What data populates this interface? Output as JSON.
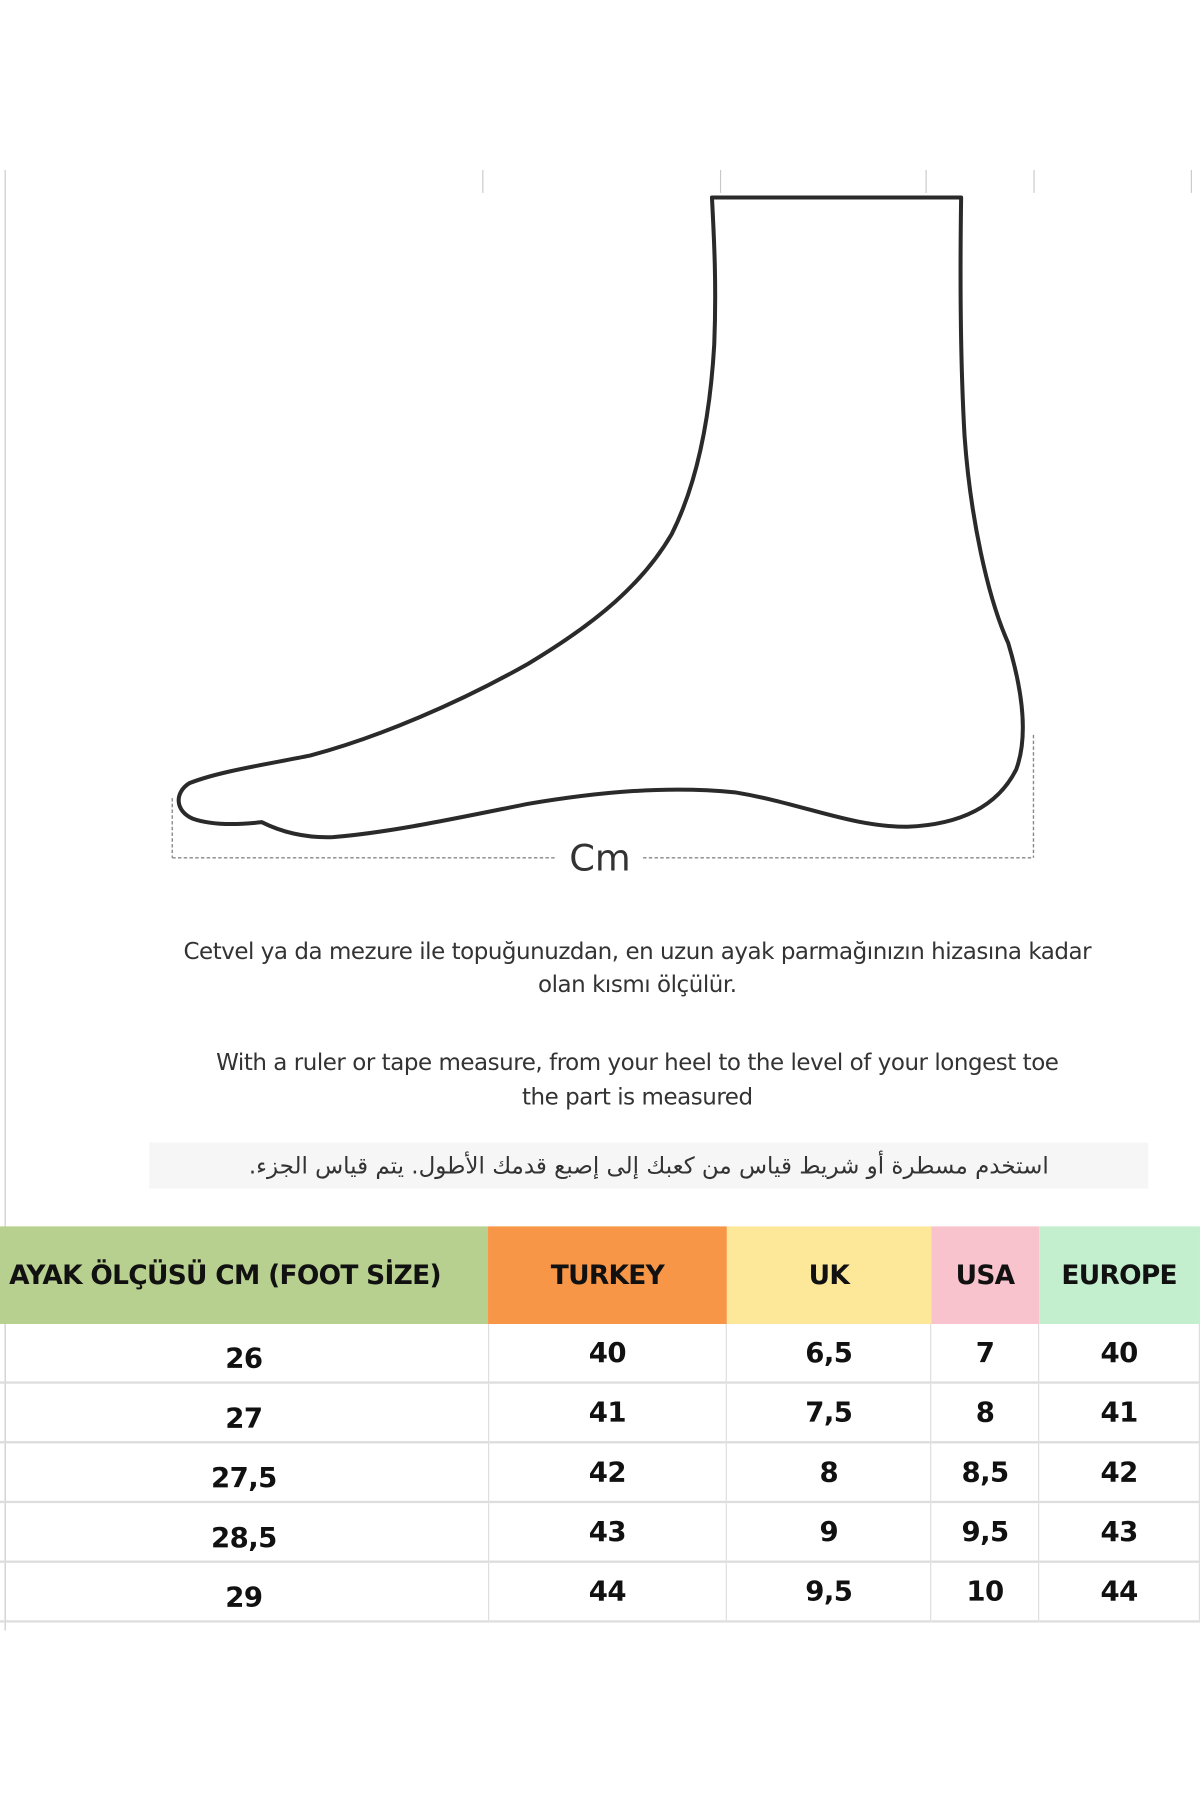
{
  "diagram": {
    "measure_label": "Cm"
  },
  "instructions": {
    "turkish_line1": "Cetvel ya da mezure ile topuğunuzdan, en uzun ayak parmağınızın hizasına kadar",
    "turkish_line2": "olan kısmı ölçülür.",
    "english_line1": "With a ruler or tape measure, from your heel to the level of your longest toe",
    "english_line2": "the part is measured",
    "arabic": "استخدم مسطرة أو شريط قياس من  كعبك إلى إصبع قدمك الأطول.  يتم قياس الجزء."
  },
  "table": {
    "headers": [
      "AYAK ÖLÇÜSÜ CM (FOOT SİZE)",
      "TURKEY",
      "UK",
      "USA",
      "EUROPE"
    ],
    "header_colors": [
      "#b8d08f",
      "#f79646",
      "#fde89a",
      "#f9c3cd",
      "#c4efcf"
    ],
    "rows": [
      [
        "26",
        "40",
        "6,5",
        "7",
        "40"
      ],
      [
        "27",
        "41",
        "7,5",
        "8",
        "41"
      ],
      [
        "27,5",
        "42",
        "8",
        "8,5",
        "42"
      ],
      [
        "28,5",
        "43",
        "9",
        "9,5",
        "43"
      ],
      [
        "29",
        "44",
        "9,5",
        "10",
        "44"
      ]
    ]
  }
}
